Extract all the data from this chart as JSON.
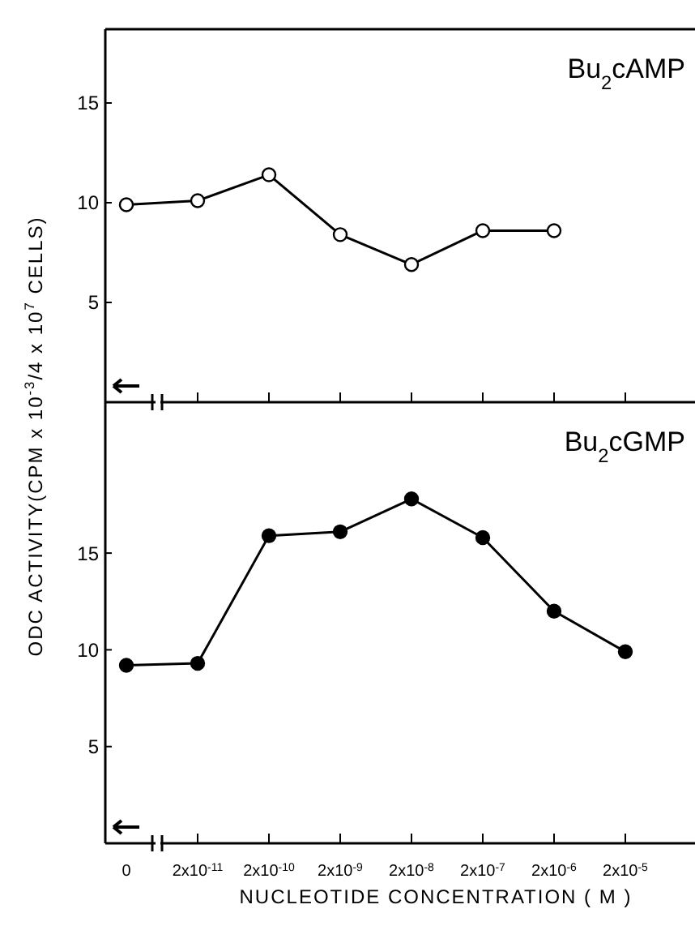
{
  "chart_data": [
    {
      "type": "line",
      "title": "Bu$_{2}$cAMP",
      "ylabel": "ODC ACTIVITY(CPM x 10$^{-3}$/4 x 10$^{7}$ CELLS)",
      "categories": [
        null,
        null,
        null,
        null,
        null,
        null,
        null,
        null
      ],
      "series": [
        {
          "color": "#000000",
          "values": [
            9.9,
            10.1,
            11.4,
            8.4,
            6.9,
            8.6,
            8.6,
            null
          ]
        }
      ],
      "ylim": [
        0,
        18.7
      ],
      "yticks": [
        5,
        10,
        15
      ],
      "marker": "circle"
    },
    {
      "type": "line",
      "title": "Bu$_{2}$cGMP",
      "xlabel": "NUCLEOTIDE CONCENTRATION ( M )",
      "categories": [
        "0",
        "2x10$^{-11}$",
        "2x10$^{-10}$",
        "2x10$^{-9}$",
        "2x10$^{-8}$",
        "2x10$^{-7}$",
        "2x10$^{-6}$",
        "2x10$^{-5}$"
      ],
      "series": [
        {
          "color": "#000000",
          "values": [
            9.2,
            9.3,
            15.9,
            16.1,
            17.8,
            15.8,
            12.0,
            9.9
          ]
        }
      ],
      "ylim": [
        0,
        22.8
      ],
      "yticks": [
        5,
        10,
        15
      ],
      "marker": "circle"
    }
  ]
}
